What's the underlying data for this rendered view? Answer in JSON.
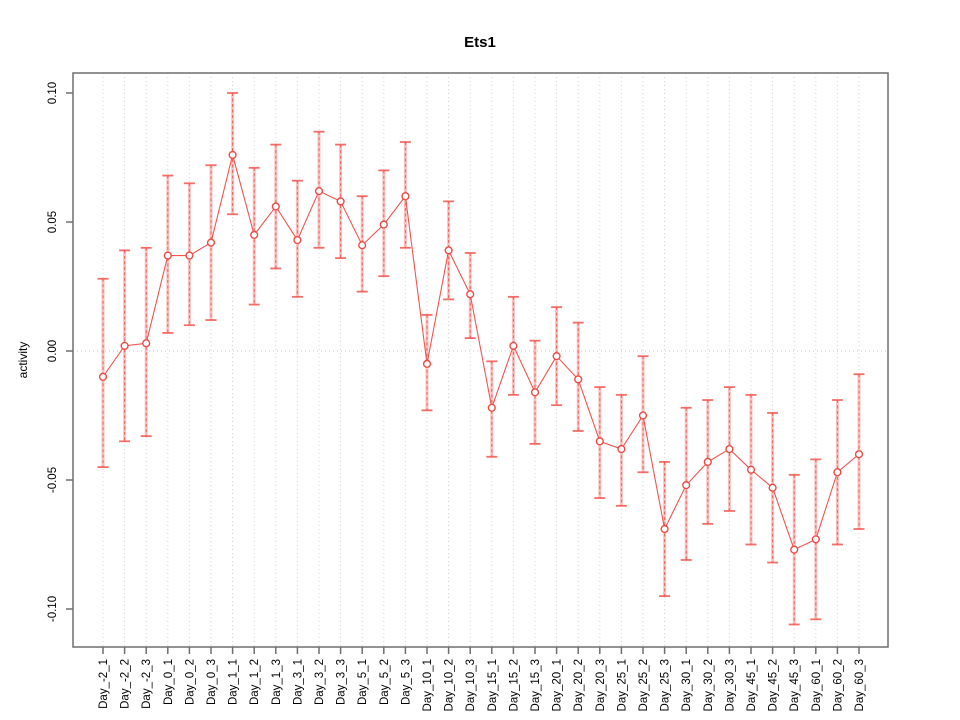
{
  "chart_data": {
    "type": "line",
    "title": "Ets1",
    "xlabel": "",
    "ylabel": "activity",
    "ylim": [
      -0.115,
      0.108
    ],
    "yticks": [
      0.1,
      0.05,
      0.0,
      -0.05,
      -0.1
    ],
    "ytick_labels": [
      "0.10",
      "0.05",
      "0.00",
      "-0.05",
      "-0.10"
    ],
    "grid": "vertical dotted gridline at every category; horizontal dotted line at y=0 only",
    "legend_position": "none",
    "marker": "open-circle",
    "error_bars": true,
    "categories": [
      "Day_-2_1",
      "Day_-2_2",
      "Day_-2_3",
      "Day_0_1",
      "Day_0_2",
      "Day_0_3",
      "Day_1_1",
      "Day_1_2",
      "Day_1_3",
      "Day_3_1",
      "Day_3_2",
      "Day_3_3",
      "Day_5_1",
      "Day_5_2",
      "Day_5_3",
      "Day_10_1",
      "Day_10_2",
      "Day_10_3",
      "Day_15_1",
      "Day_15_2",
      "Day_15_3",
      "Day_20_1",
      "Day_20_2",
      "Day_20_3",
      "Day_25_1",
      "Day_25_2",
      "Day_25_3",
      "Day_30_1",
      "Day_30_2",
      "Day_30_3",
      "Day_45_1",
      "Day_45_2",
      "Day_45_3",
      "Day_60_1",
      "Day_60_2",
      "Day_60_3"
    ],
    "series": [
      {
        "name": "activity",
        "values": [
          -0.01,
          0.002,
          0.003,
          0.037,
          0.037,
          0.042,
          0.076,
          0.045,
          0.056,
          0.043,
          0.062,
          0.058,
          0.041,
          0.049,
          0.06,
          -0.005,
          0.039,
          0.022,
          -0.022,
          0.002,
          -0.016,
          -0.002,
          -0.011,
          -0.035,
          -0.038,
          -0.025,
          -0.069,
          -0.052,
          -0.043,
          -0.038,
          -0.046,
          -0.053,
          -0.077,
          -0.073,
          -0.047,
          -0.04
        ],
        "err_high": [
          0.028,
          0.039,
          0.04,
          0.068,
          0.065,
          0.072,
          0.1,
          0.071,
          0.08,
          0.066,
          0.085,
          0.08,
          0.06,
          0.07,
          0.081,
          0.014,
          0.058,
          0.038,
          -0.004,
          0.021,
          0.004,
          0.017,
          0.011,
          -0.014,
          -0.017,
          -0.002,
          -0.043,
          -0.022,
          -0.019,
          -0.014,
          -0.017,
          -0.024,
          -0.048,
          -0.042,
          -0.019,
          -0.009
        ],
        "err_low": [
          -0.045,
          -0.035,
          -0.033,
          0.007,
          0.01,
          0.012,
          0.053,
          0.018,
          0.032,
          0.021,
          0.04,
          0.036,
          0.023,
          0.029,
          0.04,
          -0.023,
          0.02,
          0.005,
          -0.041,
          -0.017,
          -0.036,
          -0.021,
          -0.031,
          -0.057,
          -0.06,
          -0.047,
          -0.095,
          -0.081,
          -0.067,
          -0.062,
          -0.075,
          -0.082,
          -0.106,
          -0.104,
          -0.075,
          -0.069
        ]
      }
    ],
    "colors": {
      "series": "#f4544e",
      "marker_stroke": "#ef4a44",
      "error_bar_underlay": "#f8928e",
      "grid": "#d4d4d4",
      "zero_line": "#c9c9c9",
      "frame": "#6f6f6f",
      "text": "#000000"
    }
  }
}
